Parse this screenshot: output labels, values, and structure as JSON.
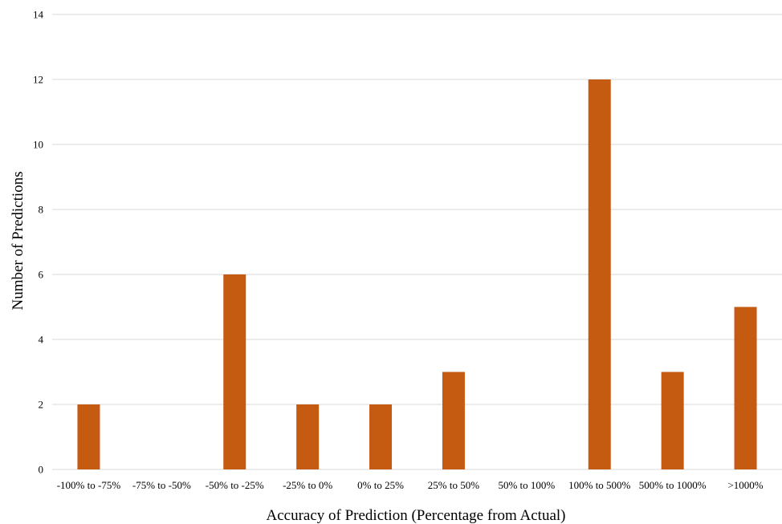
{
  "chart_data": {
    "type": "bar",
    "title": "",
    "xlabel": "Accuracy of Prediction (Percentage from Actual)",
    "ylabel": "Number of Predictions",
    "ylim": [
      0,
      14
    ],
    "yticks": [
      0,
      2,
      4,
      6,
      8,
      10,
      12,
      14
    ],
    "grid": true,
    "categories": [
      "-100% to -75%",
      "-75% to -50%",
      "-50% to -25%",
      "-25% to 0%",
      "0% to 25%",
      "25% to 50%",
      "50% to 100%",
      "100% to 500%",
      "500% to 1000%",
      ">1000%"
    ],
    "values": [
      2,
      0,
      6,
      2,
      2,
      3,
      0,
      12,
      3,
      5
    ],
    "bar_color": "#c55a11",
    "grid_color": "#d9d9d9"
  }
}
